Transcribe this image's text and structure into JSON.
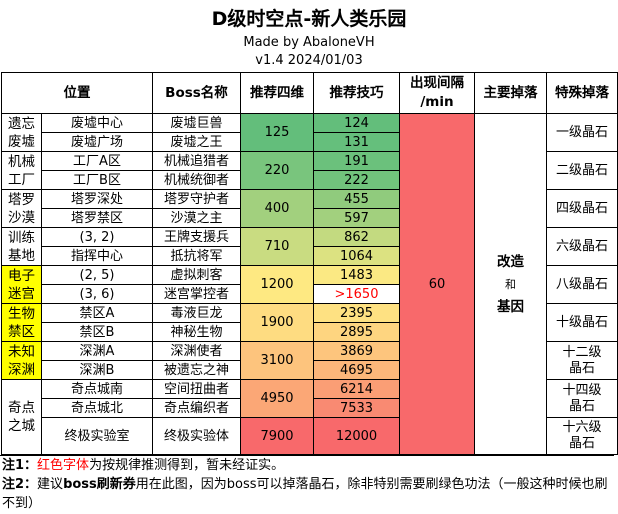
{
  "header": {
    "title": "D级时空点-新人类乐园",
    "made_by": "Made by AbaloneVH",
    "version": "v1.4  2024/01/03"
  },
  "columns": {
    "location": "位置",
    "boss": "Boss名称",
    "stats": "推荐四维",
    "skill": "推荐技巧",
    "interval_line1": "出现间隔",
    "interval_line2": "/min",
    "main_drop": "主要掉落",
    "special_drop": "特殊掉落"
  },
  "areas": [
    {
      "name": "遗忘废墟",
      "highlight": false,
      "stats": "125",
      "stats_color": "#63be7b",
      "drop": "一级晶石",
      "rows": [
        {
          "pos": "废墟中心",
          "boss": "废墟巨兽",
          "skill": "124",
          "skill_color": "#63be7b"
        },
        {
          "pos": "废墟广场",
          "boss": "废墟之王",
          "skill": "131",
          "skill_color": "#65bf7c"
        }
      ]
    },
    {
      "name": "机械工厂",
      "highlight": false,
      "stats": "220",
      "stats_color": "#79c57d",
      "drop": "二级晶石",
      "rows": [
        {
          "pos": "工厂A区",
          "boss": "机械追猎者",
          "skill": "191",
          "skill_color": "#6bc17c"
        },
        {
          "pos": "工厂B区",
          "boss": "机械统御者",
          "skill": "222",
          "skill_color": "#71c37c"
        }
      ]
    },
    {
      "name": "塔罗沙漠",
      "highlight": false,
      "stats": "400",
      "stats_color": "#a2d07e",
      "drop": "四级晶石",
      "rows": [
        {
          "pos": "塔罗深处",
          "boss": "塔罗守护者",
          "skill": "455",
          "skill_color": "#90cb7d"
        },
        {
          "pos": "塔罗禁区",
          "boss": "沙漠之主",
          "skill": "597",
          "skill_color": "#a2d07e"
        }
      ]
    },
    {
      "name": "训练基地",
      "highlight": false,
      "stats": "710",
      "stats_color": "#c9dc81",
      "drop": "六级晶石",
      "rows": [
        {
          "pos": "(3, 2)",
          "boss": "王牌支援兵",
          "skill": "862",
          "skill_color": "#c3da80"
        },
        {
          "pos": "指挥中心",
          "boss": "抵抗将军",
          "skill": "1064",
          "skill_color": "#dce281"
        }
      ]
    },
    {
      "name": "电子迷宫",
      "highlight": true,
      "stats": "1200",
      "stats_color": "#fee982",
      "drop": "八级晶石",
      "rows": [
        {
          "pos": "(2, 5)",
          "boss": "虚拟刺客",
          "skill": "1483",
          "skill_color": "#fbe983"
        },
        {
          "pos": "(3, 6)",
          "boss": "迷宫掌控者",
          "skill": ">1650",
          "skill_color": "#ffffff",
          "skill_red": true
        }
      ]
    },
    {
      "name": "生物禁区",
      "highlight": true,
      "stats": "1900",
      "stats_color": "#fedc81",
      "drop": "十级晶石",
      "rows": [
        {
          "pos": "禁区A",
          "boss": "毒液巨龙",
          "skill": "2395",
          "skill_color": "#fee182"
        },
        {
          "pos": "禁区B",
          "boss": "神秘生物",
          "skill": "2895",
          "skill_color": "#fed580"
        }
      ]
    },
    {
      "name": "未知深渊",
      "highlight": true,
      "stats": "3100",
      "stats_color": "#fdc47d",
      "drop": "十二级晶石",
      "rows": [
        {
          "pos": "深渊A",
          "boss": "深渊使者",
          "skill": "3869",
          "skill_color": "#fdc57d"
        },
        {
          "pos": "深渊B",
          "boss": "被遗忘之神",
          "skill": "4695",
          "skill_color": "#fcb77a"
        }
      ]
    },
    {
      "name": "奇点之城",
      "highlight": false,
      "stats": "4950",
      "stats_color": "#fba776",
      "drop": "十四级晶石",
      "rows": [
        {
          "pos": "奇点城南",
          "boss": "空间扭曲者",
          "skill": "6214",
          "skill_color": "#fa9e75"
        },
        {
          "pos": "奇点城北",
          "boss": "奇点编织者",
          "skill": "7533",
          "skill_color": "#f98a72"
        }
      ]
    }
  ],
  "final_row": {
    "pos": "终极实验室",
    "boss": "终极实验体",
    "stats": "7900",
    "stats_color": "#f8696b",
    "skill": "12000",
    "skill_color": "#f8696b",
    "drop": "十六级晶石"
  },
  "interval": {
    "value": "60",
    "color": "#f8696b"
  },
  "main_drop": {
    "line1": "改造",
    "line2": "和",
    "line3": "基因"
  },
  "notes": {
    "n1_prefix": "注1：",
    "n1_red": "红色字体",
    "n1_rest": "为按规律推测得到，暂未经证实。",
    "n2_prefix": "注2：",
    "n2_a": "建议",
    "n2_bold": "boss刷新券",
    "n2_b": "用在此图，因为boss可以掉落晶石，除非特别需要刷绿色功法（一般这种时候也刷不到）"
  }
}
